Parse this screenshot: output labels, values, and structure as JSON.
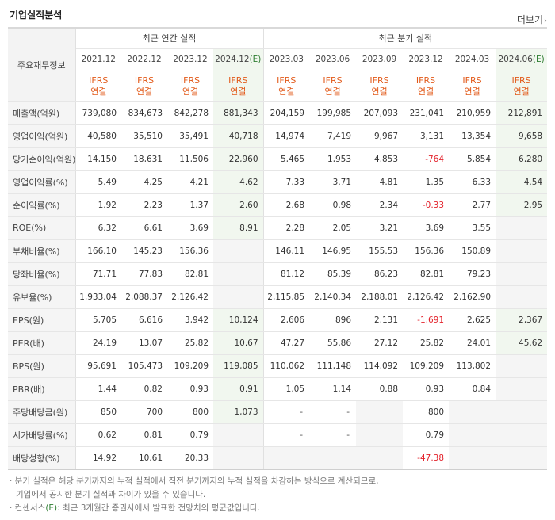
{
  "header": {
    "title": "기업실적분석",
    "more_label": "더보기",
    "more_arrow": "›"
  },
  "table": {
    "row_header_label": "주요재무정보",
    "annual_group_label": "최근 연간 실적",
    "quarter_group_label": "최근 분기 실적",
    "periods": [
      {
        "label": "2021.12",
        "est": ""
      },
      {
        "label": "2022.12",
        "est": ""
      },
      {
        "label": "2023.12",
        "est": ""
      },
      {
        "label": "2024.12",
        "est": "(E)"
      },
      {
        "label": "2023.03",
        "est": ""
      },
      {
        "label": "2023.06",
        "est": ""
      },
      {
        "label": "2023.09",
        "est": ""
      },
      {
        "label": "2023.12",
        "est": ""
      },
      {
        "label": "2024.03",
        "est": ""
      },
      {
        "label": "2024.06",
        "est": "(E)"
      }
    ],
    "ifrs_line1": "IFRS",
    "ifrs_line2": "연결",
    "rows": [
      {
        "label": "매출액(억원)",
        "values": [
          "739,080",
          "834,673",
          "842,278",
          "881,343",
          "204,159",
          "199,985",
          "207,093",
          "231,041",
          "210,959",
          "212,891"
        ]
      },
      {
        "label": "영업이익(억원)",
        "values": [
          "40,580",
          "35,510",
          "35,491",
          "40,718",
          "14,974",
          "7,419",
          "9,967",
          "3,131",
          "13,354",
          "9,658"
        ]
      },
      {
        "label": "당기순이익(억원)",
        "values": [
          "14,150",
          "18,631",
          "11,506",
          "22,960",
          "5,465",
          "1,953",
          "4,853",
          "-764",
          "5,854",
          "6,280"
        ]
      },
      {
        "label": "영업이익률(%)",
        "values": [
          "5.49",
          "4.25",
          "4.21",
          "4.62",
          "7.33",
          "3.71",
          "4.81",
          "1.35",
          "6.33",
          "4.54"
        ]
      },
      {
        "label": "순이익률(%)",
        "values": [
          "1.92",
          "2.23",
          "1.37",
          "2.60",
          "2.68",
          "0.98",
          "2.34",
          "-0.33",
          "2.77",
          "2.95"
        ]
      },
      {
        "label": "ROE(%)",
        "values": [
          "6.32",
          "6.61",
          "3.69",
          "8.91",
          "2.28",
          "2.05",
          "3.21",
          "3.69",
          "3.55",
          ""
        ]
      },
      {
        "label": "부채비율(%)",
        "values": [
          "166.10",
          "145.23",
          "156.36",
          "",
          "146.11",
          "146.95",
          "155.53",
          "156.36",
          "150.89",
          ""
        ]
      },
      {
        "label": "당좌비율(%)",
        "values": [
          "71.71",
          "77.83",
          "82.81",
          "",
          "81.12",
          "85.39",
          "86.23",
          "82.81",
          "79.23",
          ""
        ]
      },
      {
        "label": "유보율(%)",
        "values": [
          "1,933.04",
          "2,088.37",
          "2,126.42",
          "",
          "2,115.85",
          "2,140.34",
          "2,188.01",
          "2,126.42",
          "2,162.90",
          ""
        ]
      },
      {
        "label": "EPS(원)",
        "values": [
          "5,705",
          "6,616",
          "3,942",
          "10,124",
          "2,606",
          "896",
          "2,131",
          "-1,691",
          "2,625",
          "2,367"
        ]
      },
      {
        "label": "PER(배)",
        "values": [
          "24.19",
          "13.07",
          "25.82",
          "10.67",
          "47.27",
          "55.86",
          "27.12",
          "25.82",
          "24.01",
          "45.62"
        ]
      },
      {
        "label": "BPS(원)",
        "values": [
          "95,691",
          "105,473",
          "109,209",
          "119,085",
          "110,062",
          "111,148",
          "114,092",
          "109,209",
          "113,802",
          ""
        ]
      },
      {
        "label": "PBR(배)",
        "values": [
          "1.44",
          "0.82",
          "0.93",
          "0.91",
          "1.05",
          "1.14",
          "0.88",
          "0.93",
          "0.84",
          ""
        ]
      },
      {
        "label": "주당배당금(원)",
        "values": [
          "850",
          "700",
          "800",
          "1,073",
          "-",
          "-",
          "",
          "800",
          "",
          ""
        ]
      },
      {
        "label": "시가배당률(%)",
        "values": [
          "0.62",
          "0.81",
          "0.79",
          "",
          "-",
          "-",
          "",
          "0.79",
          "",
          ""
        ]
      },
      {
        "label": "배당성향(%)",
        "values": [
          "14.92",
          "10.61",
          "20.33",
          "",
          "",
          "",
          "",
          "-47.38",
          "",
          ""
        ]
      }
    ]
  },
  "notes": {
    "line1": "· 분기 실적은 해당 분기까지의 누적 실적에서 직전 분기까지의 누적 실적을 차감하는 방식으로 계산되므로,",
    "line2": "기업에서 공시한 분기 실적과 차이가 있을 수 있습니다.",
    "line3_prefix": "· 컨센서스",
    "line3_e": "(E)",
    "line3_suffix": ": 최근 3개월간 증권사에서 발표한 전망치의 평균값입니다."
  }
}
